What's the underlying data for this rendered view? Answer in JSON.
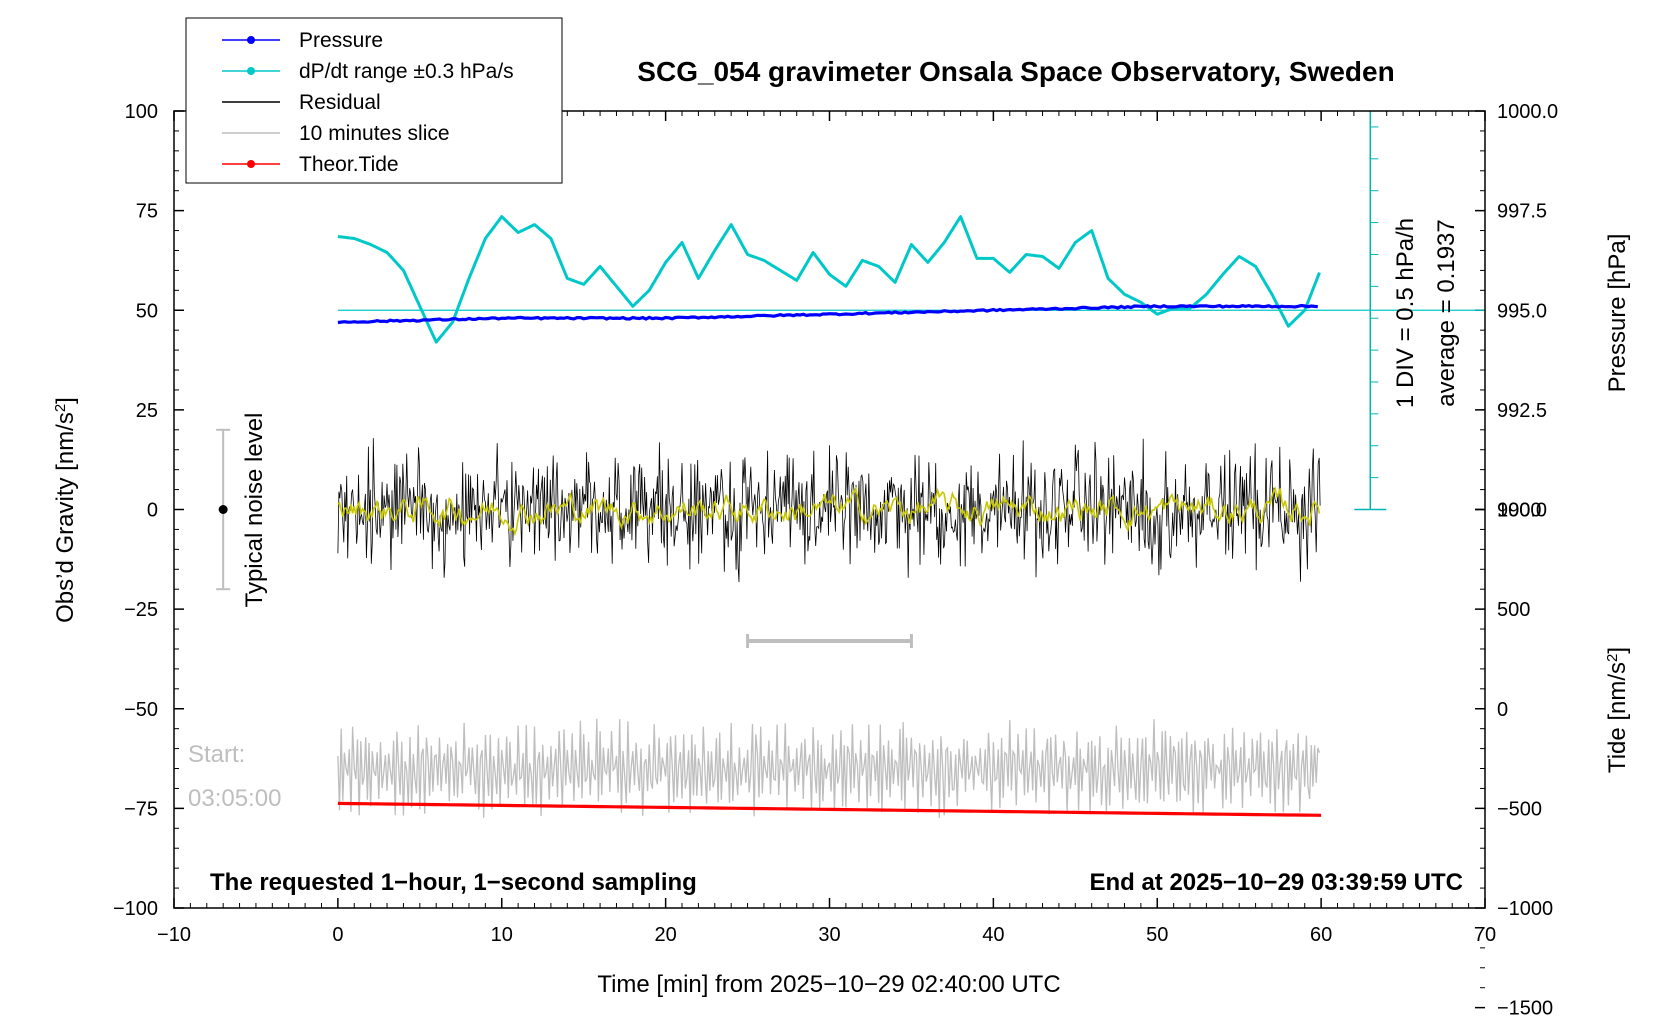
{
  "chart_data": {
    "type": "line",
    "title": "SCG_054 gravimeter Onsala Space Observatory, Sweden",
    "xlabel": "Time [min] from 2025−10−29 02:40:00 UTC",
    "ylabel_left_main": "Obs’d Gravity [nm/s",
    "ylabel_left_sup": "2",
    "ylabel_left_end": "]",
    "ylabel_right_top": "Pressure [hPa]",
    "ylabel_right_bottom_main": "Tide [nm/s",
    "ylabel_right_bottom_sup": "2",
    "ylabel_right_bottom_end": "]",
    "xlim": [
      -10,
      70
    ],
    "ylim": [
      -100,
      100
    ],
    "x_ticks": [
      -10,
      0,
      10,
      20,
      30,
      40,
      50,
      60,
      70
    ],
    "x_tick_labels": [
      "−10",
      "0",
      "10",
      "20",
      "30",
      "40",
      "50",
      "60",
      "70"
    ],
    "y_ticks": [
      100,
      75,
      50,
      25,
      0,
      -25,
      -50,
      -75,
      -100
    ],
    "y_tick_labels": [
      "100",
      "75",
      "50",
      "25",
      "0",
      "−25",
      "−50",
      "−75",
      "−100"
    ],
    "pressure_axis": {
      "ticks": [
        1000.0,
        997.5,
        995.0,
        992.5,
        990.0
      ],
      "tick_labels": [
        "1000.0",
        "997.5",
        "995.0",
        "992.5",
        "990.0"
      ],
      "gravity_at_995": 50,
      "units_per_hpa": 10
    },
    "tide_axis": {
      "ticks": [
        1000,
        500,
        0,
        -500,
        -1000,
        -1500
      ],
      "tick_labels": [
        "1000",
        "500",
        "0",
        "−500",
        "−1000",
        "−1500"
      ],
      "gravity_at_0": -50,
      "units_per_nms2": 0.05
    },
    "legend": {
      "position": "top-left",
      "entries": [
        {
          "label": "Pressure",
          "color": "#0000ff",
          "marker": true
        },
        {
          "label": "dP/dt range ±0.3 hPa/s",
          "color": "#00c8c8",
          "marker": true
        },
        {
          "label": "Residual",
          "color": "#000000",
          "marker": false
        },
        {
          "label": "10 minutes slice",
          "color": "#bebebe",
          "marker": false
        },
        {
          "label": "Theor.Tide",
          "color": "#ff0000",
          "marker": true
        }
      ]
    },
    "series": [
      {
        "name": "Pressure",
        "color": "#0000ff",
        "x": [
          0,
          10,
          20,
          30,
          40,
          50,
          60
        ],
        "y": [
          994.7,
          994.8,
          994.8,
          994.9,
          995.0,
          995.1,
          995.1
        ]
      },
      {
        "name": "dP/dt",
        "color": "#00c8c8",
        "x": [
          0,
          1,
          2,
          3,
          4,
          5,
          6,
          7,
          8,
          9,
          10,
          11,
          12,
          13,
          14,
          15,
          16,
          17,
          18,
          19,
          20,
          21,
          22,
          23,
          24,
          25,
          26,
          27,
          28,
          29,
          30,
          31,
          32,
          33,
          34,
          35,
          36,
          37,
          38,
          39,
          40,
          41,
          42,
          43,
          44,
          45,
          46,
          47,
          48,
          49,
          50,
          51,
          52,
          53,
          54,
          55,
          56,
          57,
          58,
          59,
          60
        ],
        "y": [
          68.5,
          68.0,
          66.5,
          64.5,
          60.0,
          51.0,
          42.0,
          47.0,
          58.0,
          68.0,
          73.5,
          69.5,
          71.5,
          68.0,
          58.0,
          56.5,
          61.0,
          56.0,
          51.0,
          55.0,
          62.0,
          67.0,
          58.0,
          65.0,
          71.5,
          64.0,
          62.5,
          60.0,
          57.5,
          64.5,
          59.0,
          56.0,
          62.5,
          61.0,
          57.0,
          66.5,
          62.0,
          67.0,
          73.5,
          63.0,
          63.0,
          59.5,
          64.0,
          63.5,
          60.5,
          67.0,
          70.0,
          58.0,
          54.0,
          52.0,
          49.0,
          50.5,
          50.5,
          54.0,
          59.0,
          63.5,
          61.0,
          54.0,
          46.0,
          50.0,
          60.5
        ]
      },
      {
        "name": "Residual",
        "color": "#000000",
        "x_range": [
          0,
          60
        ],
        "baseline": 0,
        "amplitude": 19
      },
      {
        "name": "Residual (smoothed)",
        "color": "#c8c800",
        "x_range": [
          0,
          60
        ],
        "baseline": 0
      },
      {
        "name": "10 minutes slice",
        "color": "#bebebe",
        "x_range": [
          0,
          60
        ],
        "baseline": -65,
        "amplitude": 13
      },
      {
        "name": "Theor.Tide",
        "color": "#ff0000",
        "x": [
          0,
          10,
          20,
          30,
          40,
          50,
          60
        ],
        "y": [
          -475,
          -485,
          -495,
          -505,
          -515,
          -525,
          -535
        ]
      }
    ],
    "pressure_reference": {
      "value": 995.0,
      "color": "#00c8c8"
    },
    "annotations": {
      "scale_bar": [
        "1 DIV = 0.5 hPa/h",
        "average = 0.1937"
      ],
      "noise_label": "Typical noise level",
      "noise_range": [
        -20,
        20
      ],
      "slice_range": [
        25,
        35
      ],
      "slice_y": -33,
      "start_label": "Start:",
      "start_time": "03:05:00",
      "footer_left": "The requested 1−hour, 1−second sampling",
      "footer_right": "End at 2025−10−29 03:39:59 UTC"
    }
  }
}
